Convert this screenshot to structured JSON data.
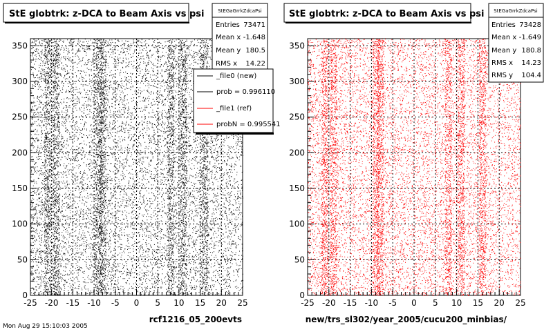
{
  "panels": [
    {
      "title": "StE globtrk: z-DCA to Beam Axis vs psi",
      "stats_name": "StEGaGrrkZdcaPsi",
      "stats": [
        {
          "label": "Entries",
          "value": "73471"
        },
        {
          "label": "Mean x",
          "value": "-1.648"
        },
        {
          "label": "Mean y",
          "value": "180.5"
        },
        {
          "label": "RMS x",
          "value": "14.22"
        }
      ],
      "xlabel": "rcf1216_05_200evts"
    },
    {
      "title": "StE globtrk: z-DCA to Beam Axis vs psi",
      "stats_name": "StEGaGrrkZdcaPsi",
      "stats": [
        {
          "label": "Entries",
          "value": "73428"
        },
        {
          "label": "Mean x",
          "value": "-1.649"
        },
        {
          "label": "Mean y",
          "value": "180.8"
        },
        {
          "label": "RMS x",
          "value": "14.23"
        },
        {
          "label": "RMS y",
          "value": "104.4"
        }
      ],
      "xlabel": "new/trs_sl302/year_2005/cucu200_minbias/"
    }
  ],
  "legend": {
    "entries": [
      {
        "label": "_file0 (new)",
        "color": "#000000"
      },
      {
        "label": "prob = 0.996110",
        "color": "#000000"
      },
      {
        "label": "_file1 (ref)",
        "color": "#ff0000"
      },
      {
        "label": "probN = 0.995541",
        "color": "#ff0000"
      }
    ]
  },
  "footer_text": "Mon Aug 29 15:10:03 2005",
  "chart_data": [
    {
      "type": "scatter",
      "title": "StE globtrk: z-DCA to Beam Axis vs psi",
      "xlabel": "rcf1216_05_200evts",
      "ylabel": "",
      "xlim": [
        -25,
        25
      ],
      "ylim": [
        0,
        360
      ],
      "x_ticks": [
        -25,
        -20,
        -15,
        -10,
        -5,
        0,
        5,
        10,
        15,
        20,
        25
      ],
      "y_ticks": [
        0,
        50,
        100,
        150,
        200,
        250,
        300,
        350
      ],
      "grid": true,
      "point_color": "#000000",
      "entries": 73471,
      "dense_x_bands": [
        -21,
        -19,
        -9,
        -8,
        8,
        11,
        16
      ]
    },
    {
      "type": "scatter",
      "title": "StE globtrk: z-DCA to Beam Axis vs psi",
      "xlabel": "new/trs_sl302/year_2005/cucu200_minbias/",
      "ylabel": "",
      "xlim": [
        -25,
        25
      ],
      "ylim": [
        0,
        360
      ],
      "x_ticks": [
        -25,
        -20,
        -15,
        -10,
        -5,
        0,
        5,
        10,
        15,
        20,
        25
      ],
      "y_ticks": [
        0,
        50,
        100,
        150,
        200,
        250,
        300,
        350
      ],
      "grid": true,
      "point_color": "#ff0000",
      "entries": 73428,
      "dense_x_bands": [
        -21,
        -19,
        -9,
        -8,
        8,
        11,
        16
      ]
    }
  ]
}
